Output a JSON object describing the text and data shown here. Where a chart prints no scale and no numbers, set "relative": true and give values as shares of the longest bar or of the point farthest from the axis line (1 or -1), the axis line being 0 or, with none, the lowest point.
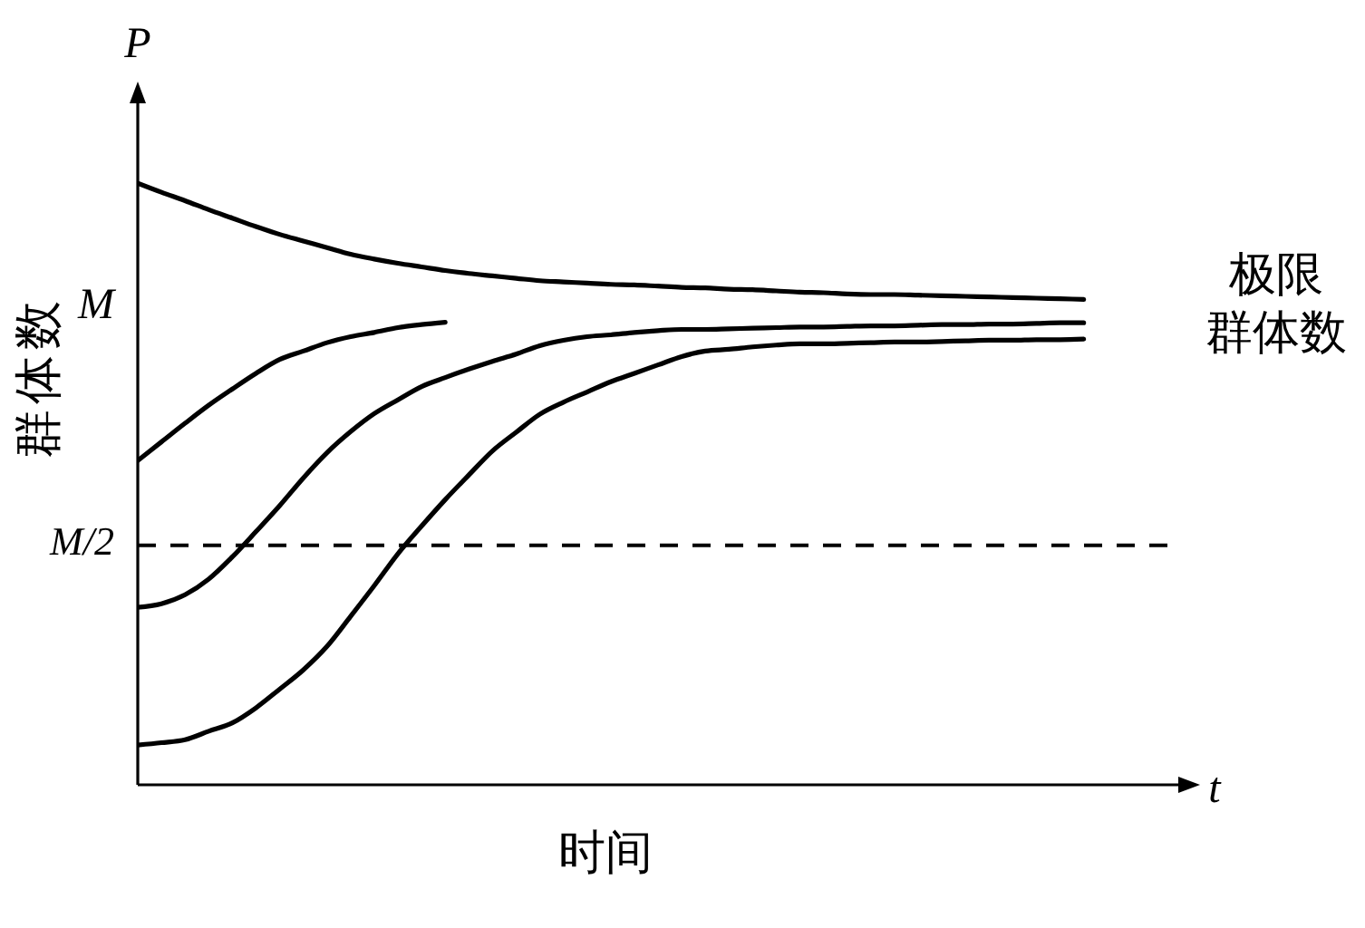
{
  "chart_data": {
    "type": "line",
    "relative": true,
    "xlabel": "时间",
    "ylabel": "群体数",
    "categories": [
      null,
      null,
      null,
      null,
      null,
      null,
      null,
      null,
      null,
      null,
      null,
      null,
      null,
      null,
      null,
      null,
      null,
      null,
      null,
      null,
      null,
      null,
      null,
      null,
      null,
      null,
      null,
      null,
      null,
      null,
      null,
      null,
      null,
      null,
      null,
      null,
      null,
      null,
      null,
      null,
      null,
      null,
      null,
      null,
      null
    ],
    "series": [
      {
        "color": "#000000",
        "values": [
          1.0,
          0.985,
          0.971,
          0.956,
          0.942,
          0.928,
          0.915,
          0.904,
          0.893,
          0.882,
          0.874,
          0.867,
          0.861,
          0.855,
          0.85,
          0.846,
          0.842,
          0.838,
          0.836,
          0.834,
          0.832,
          0.831,
          0.829,
          0.827,
          0.826,
          0.824,
          0.823,
          0.821,
          0.819,
          0.818,
          0.816,
          0.815,
          0.815,
          0.814,
          0.813,
          0.812,
          0.811,
          0.81,
          0.809,
          0.808,
          0.807,
          null,
          null,
          null,
          null
        ]
      },
      {
        "color": "#000000",
        "values": [
          0.539,
          0.57,
          0.601,
          0.631,
          0.658,
          0.684,
          0.707,
          0.721,
          0.735,
          0.745,
          0.752,
          0.76,
          0.765,
          0.769,
          null,
          null,
          null,
          null,
          null,
          null,
          null,
          null,
          null,
          null,
          null,
          null,
          null,
          null,
          null,
          null,
          null,
          null,
          null,
          null,
          null,
          null,
          null,
          null,
          null,
          null,
          null,
          null,
          null,
          null,
          null
        ]
      },
      {
        "color": "#000000",
        "values": [
          0.295,
          0.301,
          0.316,
          0.342,
          0.379,
          0.421,
          0.464,
          0.51,
          0.552,
          0.587,
          0.617,
          0.64,
          0.662,
          0.677,
          0.691,
          0.704,
          0.716,
          0.73,
          0.739,
          0.745,
          0.748,
          0.752,
          0.755,
          0.757,
          0.757,
          0.758,
          0.759,
          0.76,
          0.761,
          0.761,
          0.762,
          0.763,
          0.763,
          0.764,
          0.765,
          0.765,
          0.766,
          0.766,
          0.767,
          0.768,
          0.768,
          null,
          null,
          null,
          null
        ]
      },
      {
        "color": "#000000",
        "values": [
          0.066,
          0.07,
          0.075,
          0.089,
          0.103,
          0.128,
          0.159,
          0.191,
          0.23,
          0.28,
          0.331,
          0.384,
          0.43,
          0.474,
          0.515,
          0.555,
          0.586,
          0.616,
          0.636,
          0.653,
          0.67,
          0.684,
          0.698,
          0.712,
          0.721,
          0.724,
          0.728,
          0.731,
          0.733,
          0.733,
          0.734,
          0.735,
          0.736,
          0.736,
          0.737,
          0.738,
          0.739,
          0.739,
          0.74,
          0.74,
          0.741,
          null,
          null,
          null,
          null
        ]
      }
    ],
    "ref_lines": [
      {
        "axis": "y",
        "value": 0.398,
        "label": "M/2",
        "line_style": "dashed",
        "color": "#000000"
      }
    ],
    "annotations": [
      "P",
      "t",
      "M",
      "极限群体数"
    ],
    "marker": "none",
    "line_style": "solid"
  }
}
